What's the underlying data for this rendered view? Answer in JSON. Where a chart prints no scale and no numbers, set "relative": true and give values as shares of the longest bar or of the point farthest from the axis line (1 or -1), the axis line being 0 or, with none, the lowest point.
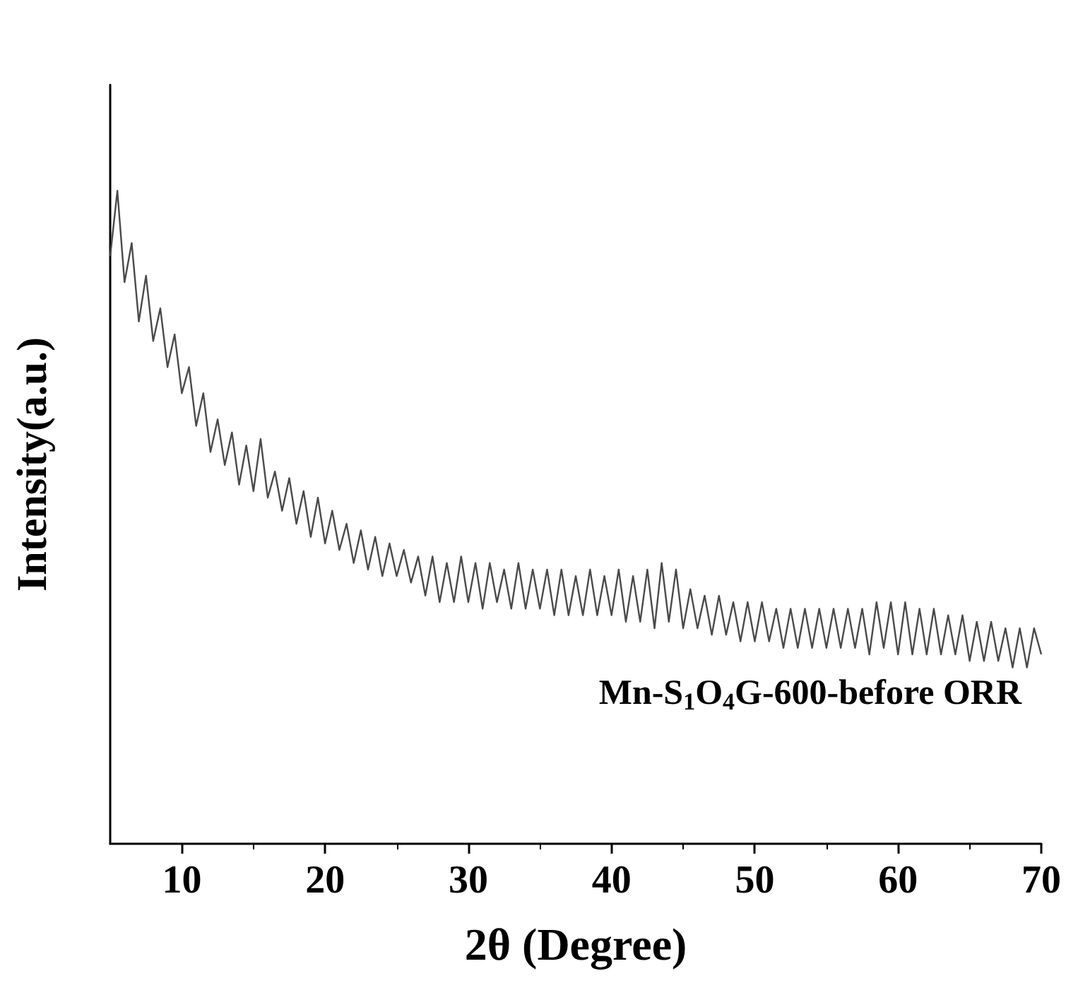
{
  "chart_data": {
    "type": "line",
    "relative": true,
    "xlabel": "2θ (Degree)",
    "ylabel": "Intensity(a.u.)",
    "annotations": [
      "Mn-S$_{1}$O$_{4}$G-600-before ORR"
    ],
    "xlim": [
      5,
      70
    ],
    "xticks": [
      10,
      20,
      30,
      40,
      50,
      60,
      70
    ],
    "grid": false,
    "marker": "none",
    "line_style": "solid",
    "x": [
      5,
      5.5,
      6,
      6.5,
      7,
      7.5,
      8,
      8.5,
      9,
      9.5,
      10,
      10.5,
      11,
      11.5,
      12,
      12.5,
      13,
      13.5,
      14,
      14.5,
      15,
      15.5,
      16,
      16.5,
      17,
      17.5,
      18,
      18.5,
      19,
      19.5,
      20,
      20.5,
      21,
      21.5,
      22,
      22.5,
      23,
      23.5,
      24,
      24.5,
      25,
      25.5,
      26,
      26.5,
      27,
      27.5,
      28,
      28.5,
      29,
      29.5,
      30,
      30.5,
      31,
      31.5,
      32,
      32.5,
      33,
      33.5,
      34,
      34.5,
      35,
      35.5,
      36,
      36.5,
      37,
      37.5,
      38,
      38.5,
      39,
      39.5,
      40,
      40.5,
      41,
      41.5,
      42,
      42.5,
      43,
      43.5,
      44,
      44.5,
      45,
      45.5,
      46,
      46.5,
      47,
      47.5,
      48,
      48.5,
      49,
      49.5,
      50,
      50.5,
      51,
      51.5,
      52,
      52.5,
      53,
      53.5,
      54,
      54.5,
      55,
      55.5,
      56,
      56.5,
      57,
      57.5,
      58,
      58.5,
      59,
      59.5,
      60,
      60.5,
      61,
      61.5,
      62,
      62.5,
      63,
      63.5,
      64,
      64.5,
      65,
      65.5,
      66,
      66.5,
      67,
      67.5,
      68,
      68.5,
      69,
      69.5,
      70
    ],
    "series": [
      {
        "color": "#4a4a4a",
        "values": [
          0.9,
          1.0,
          0.86,
          0.92,
          0.8,
          0.87,
          0.77,
          0.82,
          0.73,
          0.78,
          0.69,
          0.73,
          0.64,
          0.69,
          0.6,
          0.65,
          0.58,
          0.63,
          0.55,
          0.61,
          0.54,
          0.62,
          0.53,
          0.57,
          0.51,
          0.56,
          0.49,
          0.54,
          0.47,
          0.53,
          0.46,
          0.51,
          0.45,
          0.49,
          0.43,
          0.48,
          0.42,
          0.47,
          0.41,
          0.46,
          0.41,
          0.45,
          0.4,
          0.44,
          0.38,
          0.44,
          0.37,
          0.43,
          0.37,
          0.44,
          0.37,
          0.43,
          0.36,
          0.43,
          0.37,
          0.42,
          0.36,
          0.43,
          0.36,
          0.42,
          0.36,
          0.42,
          0.35,
          0.42,
          0.35,
          0.41,
          0.35,
          0.42,
          0.35,
          0.41,
          0.35,
          0.42,
          0.34,
          0.41,
          0.34,
          0.42,
          0.33,
          0.43,
          0.34,
          0.42,
          0.33,
          0.39,
          0.33,
          0.38,
          0.32,
          0.38,
          0.32,
          0.37,
          0.31,
          0.37,
          0.31,
          0.37,
          0.31,
          0.36,
          0.3,
          0.36,
          0.3,
          0.36,
          0.3,
          0.36,
          0.3,
          0.36,
          0.3,
          0.36,
          0.3,
          0.36,
          0.29,
          0.37,
          0.3,
          0.37,
          0.29,
          0.37,
          0.29,
          0.36,
          0.29,
          0.36,
          0.29,
          0.35,
          0.29,
          0.35,
          0.28,
          0.34,
          0.28,
          0.34,
          0.28,
          0.33,
          0.27,
          0.33,
          0.27,
          0.33,
          0.29
        ]
      }
    ]
  }
}
